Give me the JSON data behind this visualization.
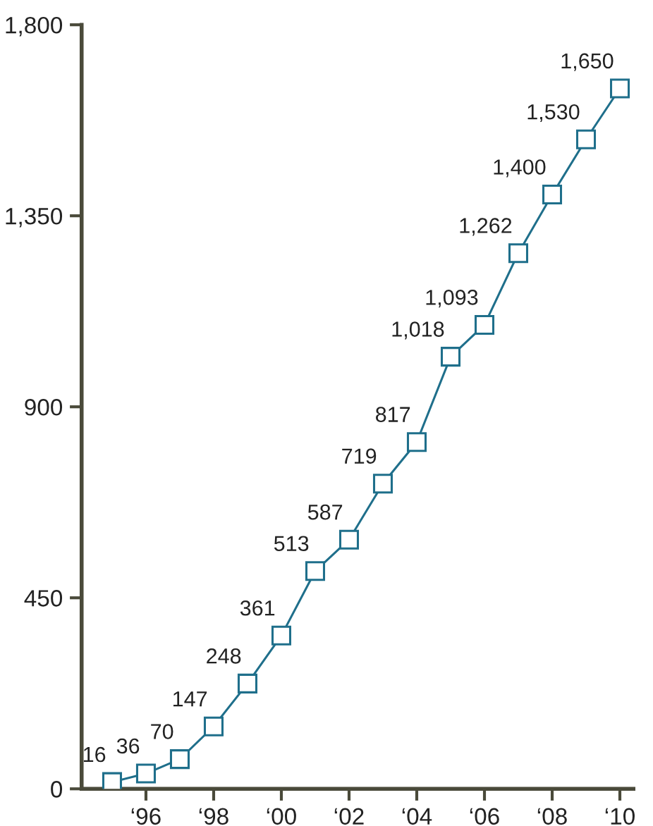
{
  "chart_data": {
    "type": "line",
    "categories": [
      null,
      "‘96",
      null,
      "‘98",
      null,
      "‘00",
      null,
      "‘02",
      null,
      "‘04",
      null,
      "‘06",
      null,
      "‘08",
      null,
      "‘10"
    ],
    "series": [
      {
        "color": "#1f6f8b",
        "values": [
          16,
          36,
          70,
          147,
          248,
          361,
          513,
          587,
          719,
          817,
          1018,
          1093,
          1262,
          1400,
          1530,
          1650
        ],
        "value_labels": [
          "16",
          "36",
          "70",
          "147",
          "248",
          "361",
          "513",
          "587",
          "719",
          "817",
          "1,018",
          "1,093",
          "1,262",
          "1,400",
          "1,530",
          "1,650"
        ]
      }
    ],
    "ylim": [
      0,
      1800
    ],
    "yticks": [
      0,
      {
        "value": 450,
        "label": "450"
      },
      {
        "value": 900,
        "label": "900"
      },
      {
        "value": 1350,
        "label": "1,350"
      },
      {
        "value": 1800,
        "label": "1,800"
      }
    ],
    "marker": "square",
    "grid": false
  }
}
